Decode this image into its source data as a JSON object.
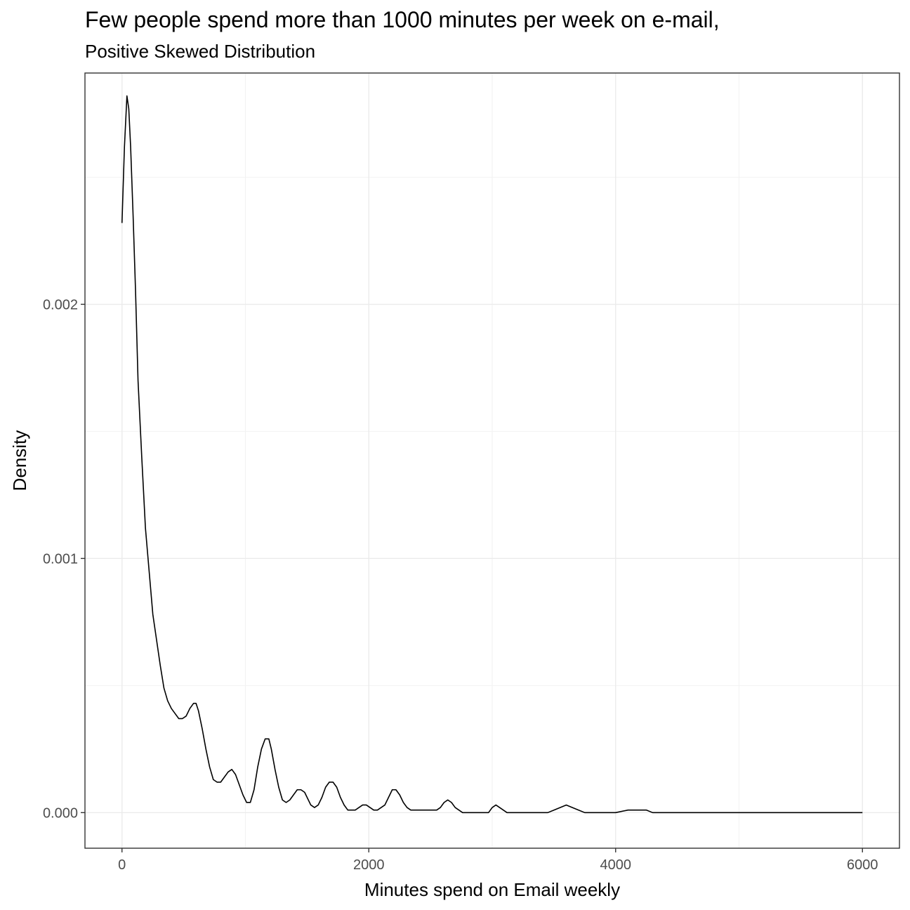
{
  "chart_data": {
    "type": "line",
    "title": "Few people spend more than 1000 minutes per week on e-mail,",
    "subtitle": "Positive Skewed Distribution",
    "xlabel": "Minutes spend on Email weekly",
    "ylabel": "Density",
    "xlim": [
      -300,
      6300
    ],
    "ylim": [
      -0.00014,
      0.00291
    ],
    "x_ticks": [
      0,
      2000,
      4000,
      6000
    ],
    "x_tick_labels": [
      "0",
      "2000",
      "4000",
      "6000"
    ],
    "y_ticks": [
      0,
      0.001,
      0.002
    ],
    "y_tick_labels": [
      "0.000",
      "0.001",
      "0.002"
    ],
    "grid": true,
    "legend": "none",
    "line_color": "#000000",
    "series": [
      {
        "x": [
          0,
          20,
          40,
          55,
          70,
          90,
          110,
          130,
          160,
          190,
          220,
          250,
          280,
          310,
          340,
          370,
          400,
          430,
          460,
          490,
          520,
          550,
          580,
          600,
          620,
          650,
          680,
          710,
          740,
          770,
          800,
          830,
          860,
          890,
          920,
          950,
          980,
          1010,
          1040,
          1070,
          1100,
          1130,
          1160,
          1190,
          1210,
          1240,
          1270,
          1300,
          1330,
          1360,
          1390,
          1420,
          1450,
          1480,
          1500,
          1530,
          1560,
          1590,
          1620,
          1650,
          1680,
          1710,
          1740,
          1770,
          1800,
          1830,
          1860,
          1890,
          1920,
          1950,
          1980,
          2010,
          2040,
          2070,
          2100,
          2130,
          2160,
          2190,
          2220,
          2250,
          2280,
          2310,
          2340,
          2370,
          2400,
          2430,
          2460,
          2490,
          2520,
          2550,
          2580,
          2610,
          2640,
          2670,
          2700,
          2730,
          2760,
          2790,
          2820,
          2850,
          2880,
          2910,
          2940,
          2970,
          3000,
          3030,
          3060,
          3090,
          3120,
          3150,
          3200,
          3250,
          3300,
          3350,
          3400,
          3450,
          3500,
          3550,
          3600,
          3650,
          3700,
          3750,
          3800,
          3850,
          3900,
          4000,
          4100,
          4200,
          4250,
          4300,
          4400,
          4500,
          4600,
          4800,
          5000,
          5200,
          5400,
          5600,
          5800,
          6000
        ],
        "y": [
          0.00232,
          0.00262,
          0.00282,
          0.00277,
          0.00262,
          0.00235,
          0.00205,
          0.0017,
          0.0014,
          0.00112,
          0.00095,
          0.00078,
          0.00068,
          0.00058,
          0.00049,
          0.00044,
          0.00041,
          0.00039,
          0.00037,
          0.00037,
          0.00038,
          0.00041,
          0.00043,
          0.00043,
          0.0004,
          0.00033,
          0.00025,
          0.00018,
          0.00013,
          0.00012,
          0.00012,
          0.00014,
          0.00016,
          0.00017,
          0.00015,
          0.00011,
          7e-05,
          4e-05,
          4e-05,
          9e-05,
          0.00018,
          0.00025,
          0.00029,
          0.00029,
          0.00025,
          0.00017,
          0.0001,
          5e-05,
          4e-05,
          5e-05,
          7e-05,
          9e-05,
          9e-05,
          8e-05,
          6e-05,
          3e-05,
          2e-05,
          3e-05,
          6e-05,
          0.0001,
          0.00012,
          0.00012,
          0.0001,
          6e-05,
          3e-05,
          1e-05,
          1e-05,
          1e-05,
          2e-05,
          3e-05,
          3e-05,
          2e-05,
          1e-05,
          1e-05,
          2e-05,
          3e-05,
          6e-05,
          9e-05,
          9e-05,
          7e-05,
          4e-05,
          2e-05,
          1e-05,
          1e-05,
          1e-05,
          1e-05,
          1e-05,
          1e-05,
          1e-05,
          1e-05,
          2e-05,
          4e-05,
          5e-05,
          4e-05,
          2e-05,
          1e-05,
          0.0,
          0.0,
          0.0,
          0.0,
          0.0,
          0.0,
          0.0,
          0.0,
          2e-05,
          3e-05,
          2e-05,
          1e-05,
          0.0,
          0.0,
          0.0,
          0.0,
          0.0,
          0.0,
          0.0,
          0.0,
          1e-05,
          2e-05,
          3e-05,
          2e-05,
          1e-05,
          0.0,
          0.0,
          0.0,
          0.0,
          0.0,
          1e-05,
          1e-05,
          1e-05,
          0.0,
          0.0,
          0.0,
          0.0,
          0.0,
          0.0,
          0.0,
          0.0,
          0.0,
          0.0,
          0.0
        ]
      }
    ]
  }
}
